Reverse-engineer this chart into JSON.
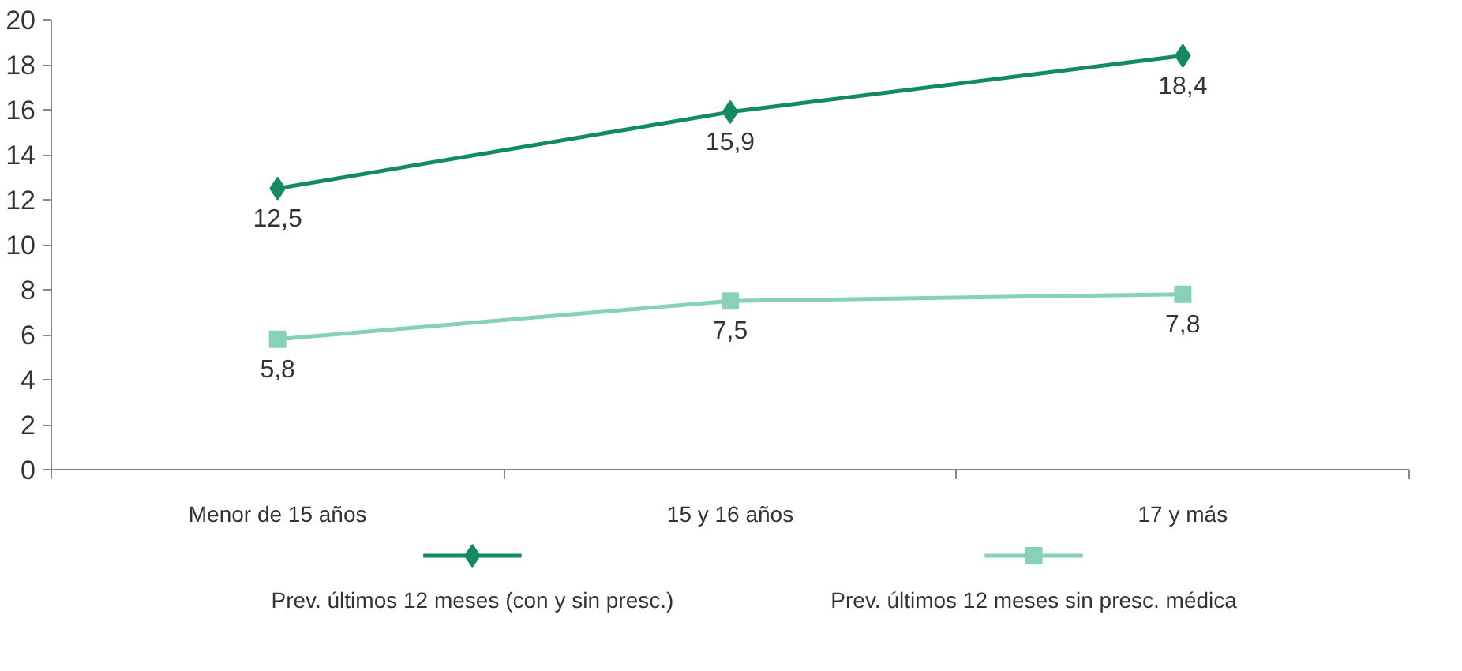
{
  "chart_data": {
    "type": "line",
    "categories": [
      "Menor de 15 años",
      "15 y 16 años",
      "17 y más"
    ],
    "series": [
      {
        "name": "Prev. últimos 12 meses (con y sin presc.)",
        "color": "#148a5f",
        "marker": "diamond",
        "values": [
          12.5,
          15.9,
          18.4
        ],
        "value_labels": [
          "12,5",
          "15,9",
          "18,4"
        ]
      },
      {
        "name": "Prev. últimos 12 meses sin presc. médica",
        "color": "#86d1b8",
        "marker": "square",
        "values": [
          5.8,
          7.5,
          7.8
        ],
        "value_labels": [
          "5,8",
          "7,5",
          "7,8"
        ]
      }
    ],
    "ylim": [
      0,
      20
    ],
    "yticks": [
      0,
      2,
      4,
      6,
      8,
      10,
      12,
      14,
      16,
      18,
      20
    ],
    "grid": false,
    "legend": "bottom",
    "line_style": "solid"
  }
}
